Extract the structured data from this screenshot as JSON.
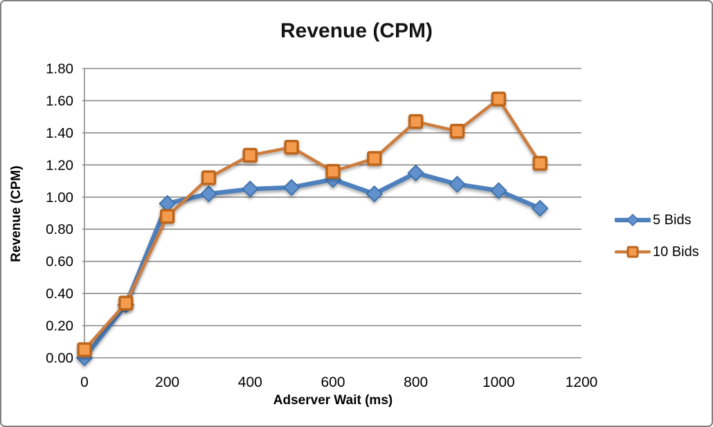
{
  "chart_data": {
    "type": "line",
    "title": "Revenue (CPM)",
    "xlabel": "Adserver Wait (ms)",
    "ylabel": "Revenue (CPM)",
    "x": [
      0,
      100,
      200,
      300,
      400,
      500,
      600,
      700,
      800,
      900,
      1000,
      1100
    ],
    "xlim": [
      0,
      1200
    ],
    "ylim": [
      0,
      1.8
    ],
    "x_ticks": [
      0,
      200,
      400,
      600,
      800,
      1000,
      1200
    ],
    "y_tick_step": 0.2,
    "y_tick_decimals": 2,
    "grid": true,
    "legend_position": "right",
    "series": [
      {
        "name": "5 Bids",
        "marker": "diamond",
        "color": "#4e80bc",
        "marker_fill": "#6191cd",
        "marker_stroke": "#3a6ea8",
        "values": [
          0.0,
          0.33,
          0.96,
          1.02,
          1.05,
          1.06,
          1.11,
          1.02,
          1.15,
          1.08,
          1.04,
          0.93
        ]
      },
      {
        "name": "10 Bids",
        "marker": "square",
        "color": "#cd7c3d",
        "marker_fill": "#f49b4d",
        "marker_stroke": "#bc651b",
        "values": [
          0.05,
          0.34,
          0.88,
          1.12,
          1.26,
          1.31,
          1.16,
          1.24,
          1.47,
          1.41,
          1.61,
          1.21
        ]
      }
    ],
    "frame_colors": {
      "grid": "#8a8a8a",
      "axis": "#8a8a8a",
      "border": "#7f7f7f",
      "text": "#000000"
    }
  }
}
